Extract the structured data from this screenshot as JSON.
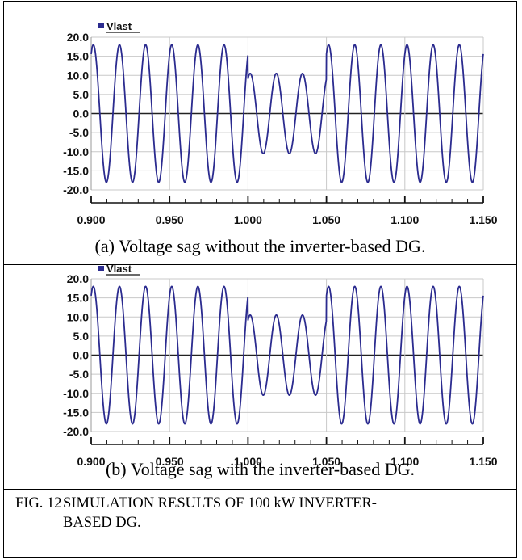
{
  "chart_data": [
    {
      "type": "line",
      "legend": "Vlast",
      "legend_position": "top-left",
      "y_ticks": [
        "20.0",
        "15.0",
        "10.0",
        "5.0",
        "0.0",
        "-5.0",
        "-10.0",
        "-15.0",
        "-20.0"
      ],
      "x_ticks": [
        "0.900",
        "0.950",
        "1.000",
        "1.050",
        "1.100",
        "1.150"
      ],
      "xlim": [
        0.9,
        1.15
      ],
      "ylim": [
        -20,
        20
      ],
      "grid": true,
      "series": [
        {
          "name": "Vlast",
          "color": "#2b2b8f",
          "frequency_hz": 60,
          "segments": [
            {
              "x_start": 0.9,
              "x_end": 1.0,
              "amplitude": 18
            },
            {
              "x_start": 1.0,
              "x_end": 1.05,
              "amplitude": 10.5
            },
            {
              "x_start": 1.05,
              "x_end": 1.15,
              "amplitude": 18
            }
          ]
        }
      ]
    },
    {
      "type": "line",
      "legend": "Vlast",
      "legend_position": "top-left",
      "y_ticks": [
        "20.0",
        "15.0",
        "10.0",
        "5.0",
        "0.0",
        "-5.0",
        "-10.0",
        "-15.0",
        "-20.0"
      ],
      "x_ticks": [
        "0.900",
        "0.950",
        "1.000",
        "1.050",
        "1.100",
        "1.150"
      ],
      "xlim": [
        0.9,
        1.15
      ],
      "ylim": [
        -20,
        20
      ],
      "grid": true,
      "series": [
        {
          "name": "Vlast",
          "color": "#2b2b8f",
          "frequency_hz": 60,
          "segments": [
            {
              "x_start": 0.9,
              "x_end": 1.0,
              "amplitude": 18
            },
            {
              "x_start": 1.0,
              "x_end": 1.05,
              "amplitude": 10.5
            },
            {
              "x_start": 1.05,
              "x_end": 1.15,
              "amplitude": 18
            }
          ]
        }
      ]
    }
  ],
  "captions": {
    "a": "(a) Voltage sag without the inverter-based DG.",
    "b": "(b) Voltage sag with the inverter-based DG."
  },
  "figure_caption": {
    "label": "FIG. 12",
    "line1": "SIMULATION RESULTS OF 100 kW INVERTER-",
    "line2": "BASED DG."
  }
}
